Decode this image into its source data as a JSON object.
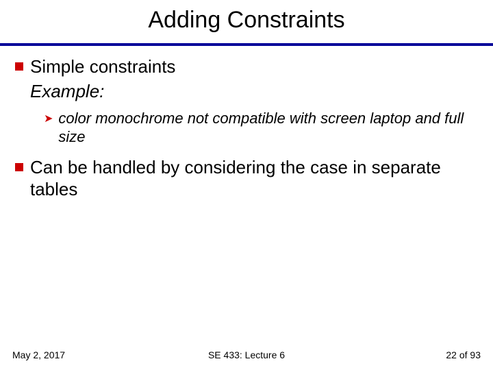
{
  "title": "Adding Constraints",
  "colors": {
    "accent": "#cc0000",
    "rule": "#000099"
  },
  "bullets": [
    {
      "text": "Simple constraints",
      "example_label": "Example:",
      "sub": [
        {
          "text": "color monochrome not compatible with screen laptop and full size"
        }
      ]
    },
    {
      "text": "Can be handled by considering the case in separate tables"
    }
  ],
  "footer": {
    "left": "May 2, 2017",
    "center": "SE 433: Lecture 6",
    "right_prefix": "22",
    "right_suffix": " of 93"
  }
}
